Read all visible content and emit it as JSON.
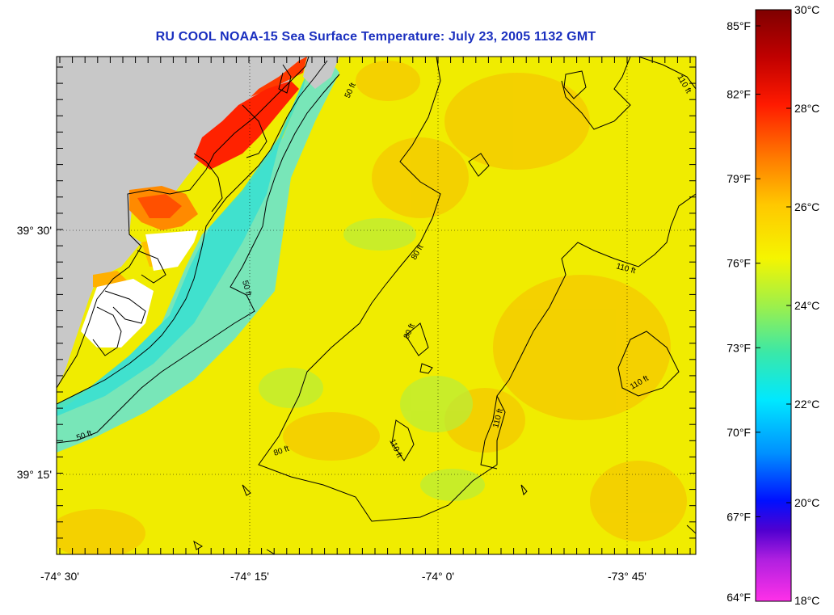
{
  "title": "RU COOL  NOAA-15  Sea Surface Temperature:  July 23, 2005 1132 GMT",
  "map": {
    "x_ticks": [
      "-74° 30'",
      "-74° 15'",
      "-74° 0'",
      "-73° 45'"
    ],
    "y_ticks": [
      "39° 30'",
      "39° 15'"
    ],
    "land_color": "#c8c8c8",
    "contours": [
      {
        "label": "50 ft"
      },
      {
        "label": "80 ft"
      },
      {
        "label": "110 ft"
      }
    ]
  },
  "colorbar": {
    "fahrenheit": [
      "85°F",
      "82°F",
      "79°F",
      "76°F",
      "73°F",
      "70°F",
      "67°F",
      "64°F"
    ],
    "celsius": [
      "30°C",
      "28°C",
      "26°C",
      "24°C",
      "22°C",
      "20°C",
      "18°C"
    ],
    "c_min": 18,
    "c_max": 30,
    "f_min": 64,
    "f_max": 86
  }
}
